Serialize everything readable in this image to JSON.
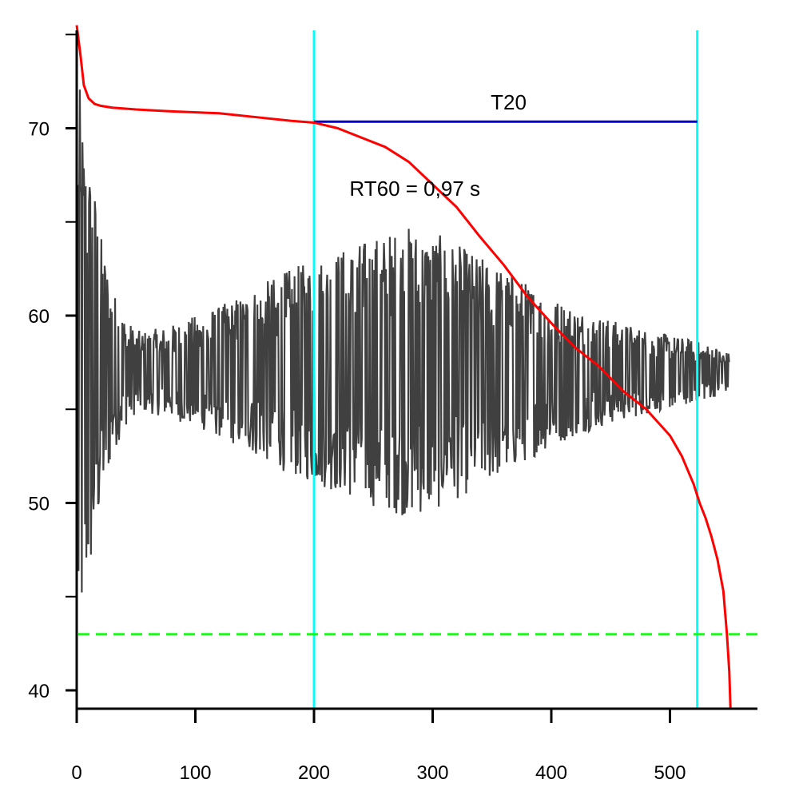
{
  "chart_data": {
    "type": "line",
    "title": "",
    "xlabel": "",
    "ylabel": "",
    "xlim": [
      0,
      575
    ],
    "ylim": [
      39,
      75.5
    ],
    "x_ticks": [
      0,
      100,
      200,
      300,
      400,
      500
    ],
    "y_ticks": [
      40,
      50,
      60,
      70
    ],
    "y_minor_ticks": [
      45,
      55,
      65,
      75
    ],
    "grid": false,
    "legend": "none",
    "series": [
      {
        "kind": "decay-curve",
        "color": "#ff0000",
        "x": [
          0,
          3,
          6,
          10,
          15,
          20,
          30,
          50,
          80,
          120,
          150,
          180,
          200,
          220,
          240,
          260,
          280,
          300,
          320,
          340,
          360,
          380,
          400,
          420,
          440,
          460,
          480,
          500,
          510,
          520,
          525,
          530,
          535,
          540,
          545,
          548,
          550,
          551
        ],
        "y": [
          75.5,
          74.0,
          72.3,
          71.6,
          71.3,
          71.2,
          71.1,
          71.0,
          70.9,
          70.8,
          70.6,
          70.4,
          70.3,
          70.0,
          69.5,
          69.0,
          68.2,
          67.0,
          65.8,
          64.2,
          62.7,
          61.0,
          59.6,
          58.3,
          57.3,
          56.0,
          55.0,
          53.6,
          52.5,
          51.0,
          50.0,
          49.2,
          48.2,
          47.0,
          45.3,
          43.0,
          41.0,
          39.0
        ]
      },
      {
        "kind": "signal",
        "color": "#404040",
        "envelope_x": [
          0,
          3,
          6,
          10,
          15,
          20,
          30,
          40,
          50,
          60,
          80,
          100,
          120,
          150,
          180,
          200,
          220,
          250,
          280,
          300,
          330,
          360,
          400,
          430,
          460,
          490,
          520,
          540,
          550
        ],
        "envelope_halfwidth": [
          16,
          15,
          13,
          11.5,
          10,
          7.5,
          4.5,
          3.0,
          2.2,
          2.2,
          2.5,
          3.0,
          3.5,
          4.5,
          5.5,
          6.0,
          6.5,
          7.2,
          7.8,
          7.5,
          6.5,
          5.5,
          4.0,
          3.2,
          2.6,
          2.1,
          1.7,
          1.3,
          1.0
        ],
        "center": 57.0
      }
    ],
    "vertical_lines": [
      {
        "x": 200,
        "color": "#00ffff"
      },
      {
        "x": 523,
        "color": "#00ffff"
      }
    ],
    "horizontal_lines": [
      {
        "y": 43.0,
        "color": "#00ff00",
        "style": "dashed"
      }
    ],
    "span": {
      "x1": 200,
      "x2": 523,
      "y": 70.35,
      "color": "#0000cc"
    },
    "annotations": [
      {
        "text": "T20",
        "x": 364,
        "y": 71.0
      },
      {
        "text": "RT60 = 0,97 s",
        "x": 285,
        "y": 66.4
      }
    ]
  }
}
